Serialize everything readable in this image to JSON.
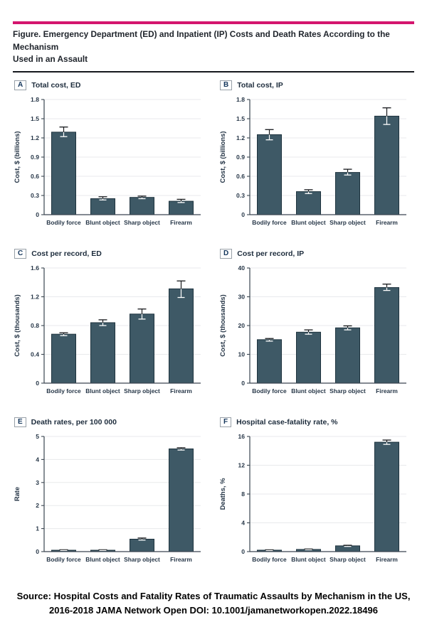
{
  "page": {
    "title_line1": "Figure. Emergency Department (ED) and Inpatient (IP) Costs and Death Rates According to the Mechanism",
    "title_line2": "Used in an Assault",
    "source_line1": "Source: Hospital Costs and Fatality Rates of Traumatic Assaults by Mechanism in the US,",
    "source_line2": "2016-2018 JAMA Network Open DOI: 10.1001/jamanetworkopen.2022.18496"
  },
  "colors": {
    "accent": "#d4156e",
    "bar_fill": "#3e5966",
    "bar_stroke": "#1e333e",
    "grid": "#e8eaec",
    "axis": "#3a4550",
    "tick_text": "#273748",
    "error_dark": "#17191c",
    "error_light": "#ffffff"
  },
  "chart_data": [
    {
      "panel": "A",
      "title": "Total cost, ED",
      "type": "bar",
      "ylabel": "Cost, $ (billions)",
      "ylim": [
        0,
        1.8
      ],
      "yticks": [
        0,
        0.3,
        0.6,
        0.9,
        1.2,
        1.5,
        1.8
      ],
      "categories": [
        "Bodily force",
        "Blunt object",
        "Sharp object",
        "Firearm"
      ],
      "values": [
        1.29,
        0.25,
        0.27,
        0.21
      ],
      "error_low": [
        1.22,
        0.23,
        0.25,
        0.19
      ],
      "error_high": [
        1.37,
        0.28,
        0.29,
        0.24
      ],
      "grid": true
    },
    {
      "panel": "B",
      "title": "Total cost, IP",
      "type": "bar",
      "ylabel": "Cost, $ (billions)",
      "ylim": [
        0,
        1.8
      ],
      "yticks": [
        0,
        0.3,
        0.6,
        0.9,
        1.2,
        1.5,
        1.8
      ],
      "categories": [
        "Bodily force",
        "Blunt object",
        "Sharp object",
        "Firearm"
      ],
      "values": [
        1.25,
        0.36,
        0.66,
        1.54
      ],
      "error_low": [
        1.17,
        0.33,
        0.62,
        1.41
      ],
      "error_high": [
        1.33,
        0.39,
        0.71,
        1.67
      ],
      "grid": true
    },
    {
      "panel": "C",
      "title": "Cost per record, ED",
      "type": "bar",
      "ylabel": "Cost, $ (thousands)",
      "ylim": [
        0,
        1.6
      ],
      "yticks": [
        0,
        0.4,
        0.8,
        1.2,
        1.6
      ],
      "categories": [
        "Bodily force",
        "Blunt object",
        "Sharp object",
        "Firearm"
      ],
      "values": [
        0.68,
        0.84,
        0.96,
        1.31
      ],
      "error_low": [
        0.66,
        0.8,
        0.89,
        1.19
      ],
      "error_high": [
        0.7,
        0.88,
        1.03,
        1.42
      ],
      "grid": true
    },
    {
      "panel": "D",
      "title": "Cost per record, IP",
      "type": "bar",
      "ylabel": "Cost, $ (thousands)",
      "ylim": [
        0,
        40
      ],
      "yticks": [
        0,
        10,
        20,
        30,
        40
      ],
      "categories": [
        "Bodily force",
        "Blunt object",
        "Sharp object",
        "Firearm"
      ],
      "values": [
        15.1,
        17.7,
        19.2,
        33.2
      ],
      "error_low": [
        14.6,
        17.0,
        18.5,
        32.2
      ],
      "error_high": [
        15.5,
        18.5,
        19.9,
        34.4
      ],
      "grid": true
    },
    {
      "panel": "E",
      "title": "Death rates, per 100 000",
      "type": "bar",
      "ylabel": "Rate",
      "ylim": [
        0,
        5
      ],
      "yticks": [
        0,
        1,
        2,
        3,
        4,
        5
      ],
      "categories": [
        "Bodily force",
        "Blunt object",
        "Sharp object",
        "Firearm"
      ],
      "values": [
        0.06,
        0.06,
        0.54,
        4.46
      ],
      "error_low": [
        0.05,
        0.05,
        0.5,
        4.41
      ],
      "error_high": [
        0.08,
        0.08,
        0.59,
        4.51
      ],
      "grid": true
    },
    {
      "panel": "F",
      "title": "Hospital case-fatality rate, %",
      "type": "bar",
      "ylabel": "Deaths, %",
      "ylim": [
        0,
        16
      ],
      "yticks": [
        0,
        4,
        8,
        12,
        16
      ],
      "categories": [
        "Bodily force",
        "Blunt object",
        "Sharp object",
        "Firearm"
      ],
      "values": [
        0.2,
        0.3,
        0.8,
        15.2
      ],
      "error_low": [
        0.15,
        0.25,
        0.72,
        14.9
      ],
      "error_high": [
        0.25,
        0.36,
        0.88,
        15.5
      ],
      "grid": true
    }
  ]
}
